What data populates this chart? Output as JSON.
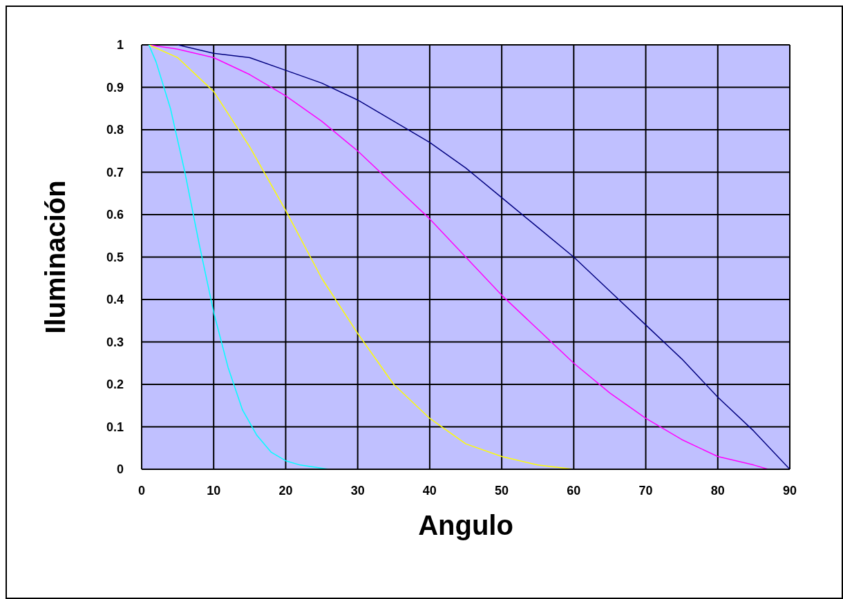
{
  "chart_data": {
    "type": "line",
    "xlabel": "Angulo",
    "ylabel": "Iluminación",
    "xlim": [
      0,
      90
    ],
    "xticks": [
      0,
      10,
      20,
      30,
      40,
      50,
      60,
      70,
      80,
      90
    ],
    "ylim": [
      0,
      1
    ],
    "yticks": [
      0,
      0.1,
      0.2,
      0.3,
      0.4,
      0.5,
      0.6,
      0.7,
      0.8,
      0.9,
      1
    ],
    "grid": true,
    "marker": "none",
    "line_style": "solid",
    "series": [
      {
        "color": "#000080",
        "x": [
          5,
          10,
          15,
          20,
          25,
          30,
          35,
          40,
          45,
          50,
          55,
          60,
          65,
          70,
          75,
          80,
          85,
          90
        ],
        "values": [
          1,
          0.98,
          0.97,
          0.94,
          0.91,
          0.87,
          0.82,
          0.77,
          0.71,
          0.64,
          0.57,
          0.5,
          0.42,
          0.34,
          0.26,
          0.17,
          0.09,
          0
        ]
      },
      {
        "color": "#ff00ff",
        "x": [
          1,
          5,
          10,
          15,
          20,
          25,
          30,
          35,
          40,
          45,
          50,
          55,
          60,
          65,
          70,
          75,
          80,
          85,
          87
        ],
        "values": [
          1,
          0.99,
          0.97,
          0.93,
          0.88,
          0.82,
          0.75,
          0.67,
          0.59,
          0.5,
          0.41,
          0.33,
          0.25,
          0.18,
          0.12,
          0.07,
          0.03,
          0.01,
          0
        ]
      },
      {
        "color": "#ffff00",
        "x": [
          1,
          5,
          10,
          15,
          20,
          25,
          30,
          35,
          40,
          45,
          50,
          55,
          60,
          65
        ],
        "values": [
          1,
          0.97,
          0.89,
          0.76,
          0.61,
          0.45,
          0.32,
          0.2,
          0.12,
          0.06,
          0.03,
          0.01,
          0,
          0
        ]
      },
      {
        "color": "#00ffff",
        "x": [
          1,
          2,
          4,
          6,
          8,
          10,
          12,
          14,
          16,
          18,
          20,
          22,
          26
        ],
        "values": [
          1,
          0.96,
          0.85,
          0.7,
          0.53,
          0.37,
          0.24,
          0.14,
          0.08,
          0.04,
          0.02,
          0.01,
          0
        ]
      }
    ]
  }
}
